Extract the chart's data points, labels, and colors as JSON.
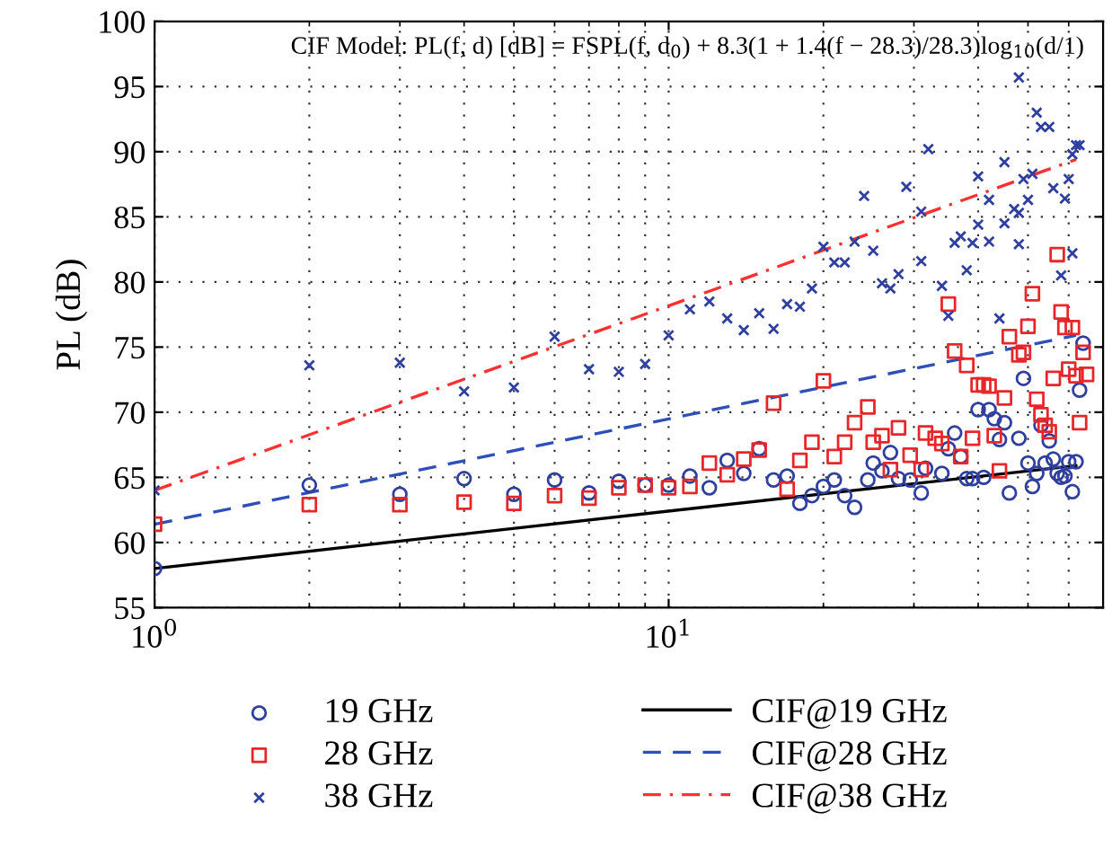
{
  "chart_data": {
    "type": "scatter",
    "ylabel": "PL (dB)",
    "log": "x",
    "xlim": [
      1,
      70
    ],
    "xticks": [
      {
        "value": 1,
        "label": "10$^{0}$"
      },
      {
        "value": 10,
        "label": "10$^{1}$"
      }
    ],
    "ylim": [
      55,
      100
    ],
    "yticks": [
      55,
      60,
      65,
      70,
      75,
      80,
      85,
      90,
      95,
      100
    ],
    "grid": true,
    "legend": "bottom",
    "annotations": [
      "CIF Model: PL(f, d) [dB] = FSPL(f, d$_{0}$) + 8.3(1 + 1.4(f − 28.3)/28.3)log$_{10}$(d/1)"
    ],
    "series": [
      {
        "name": "19 GHz",
        "marker": "circle",
        "color": "#2e3fa0",
        "x": [
          1,
          2,
          3,
          4,
          5,
          6,
          7,
          8,
          9,
          10,
          11,
          12,
          13,
          14,
          15,
          16,
          17,
          18,
          19,
          20,
          21,
          22,
          23,
          24.4,
          25,
          26,
          27,
          28,
          29.5,
          31,
          31.6,
          34,
          35,
          36,
          37,
          38,
          39,
          40,
          41,
          42,
          43,
          44,
          45,
          46,
          48,
          49,
          50,
          51,
          52,
          53,
          54,
          55,
          56,
          57,
          58,
          59,
          60,
          61,
          62,
          63,
          64
        ],
        "values": [
          58,
          64.4,
          63.7,
          64.9,
          63.7,
          64.8,
          63.8,
          64.7,
          64.4,
          64.4,
          65.1,
          64.2,
          66.3,
          65.3,
          67.2,
          64.8,
          65.1,
          63.0,
          63.6,
          64.3,
          64.8,
          63.6,
          62.7,
          64.8,
          66.1,
          65.5,
          66.9,
          64.9,
          64.8,
          63.8,
          65.7,
          65.3,
          67.2,
          68.4,
          66.6,
          64.9,
          64.9,
          70.2,
          65.0,
          70.2,
          69.5,
          67.9,
          69.2,
          63.8,
          68.0,
          72.6,
          66.1,
          64.3,
          65.3,
          69.0,
          66.1,
          67.8,
          66.4,
          65.3,
          65.0,
          65.1,
          66.2,
          63.9,
          66.2,
          71.7,
          75.3
        ]
      },
      {
        "name": "28 GHz",
        "marker": "square",
        "color": "#e8262a",
        "x": [
          1,
          2,
          3,
          4,
          5,
          6,
          7,
          8,
          9,
          10,
          11,
          12,
          13,
          14,
          15,
          16,
          17,
          18,
          19,
          20,
          21,
          22,
          23,
          24.4,
          25,
          26,
          27,
          28,
          29.5,
          31,
          31.6,
          33,
          34,
          35,
          36,
          37,
          38,
          39,
          40,
          41,
          42,
          43,
          44,
          45,
          46,
          48,
          49,
          50,
          51,
          52,
          53,
          54,
          55,
          56,
          57,
          58,
          59,
          60,
          61,
          62,
          63,
          64,
          65
        ],
        "values": [
          61.4,
          62.9,
          62.9,
          63.1,
          63.0,
          63.6,
          63.4,
          64.2,
          64.4,
          64.2,
          64.3,
          66.1,
          65.2,
          66.4,
          67.1,
          70.7,
          64.1,
          66.3,
          67.7,
          72.4,
          66.6,
          67.7,
          69.2,
          70.4,
          67.7,
          68.2,
          65.6,
          68.8,
          66.7,
          65.6,
          68.4,
          68.0,
          67.6,
          78.3,
          74.7,
          66.6,
          73.6,
          68.0,
          72.1,
          72.1,
          72.0,
          68.2,
          65.5,
          71.1,
          75.8,
          74.4,
          74.6,
          76.6,
          79.1,
          71.0,
          69.8,
          69.0,
          68.5,
          72.6,
          82.1,
          77.7,
          76.5,
          73.3,
          76.5,
          72.8,
          69.2,
          74.6,
          72.9
        ]
      },
      {
        "name": "38 GHz",
        "marker": "cross",
        "color": "#2e3fa0",
        "x": [
          1,
          2,
          3,
          4,
          5,
          6,
          7,
          8,
          9,
          10,
          11,
          12,
          13,
          14,
          15,
          16,
          17,
          18,
          19,
          20,
          21,
          22,
          23,
          24,
          25,
          26,
          27,
          28,
          29,
          31,
          31,
          32,
          34,
          35,
          36,
          37,
          38,
          39,
          40,
          40,
          42,
          42,
          44,
          45,
          45,
          47,
          48,
          48,
          48,
          49,
          50,
          51,
          52,
          53,
          55,
          56,
          58,
          59,
          60,
          61,
          61,
          62,
          63
        ],
        "values": [
          64,
          73.6,
          73.8,
          71.6,
          71.9,
          75.8,
          73.3,
          73.1,
          73.7,
          75.9,
          77.9,
          78.5,
          77.2,
          76.3,
          77.6,
          76.4,
          78.3,
          78.1,
          79.5,
          82.7,
          81.5,
          81.5,
          83.1,
          86.6,
          82.4,
          79.9,
          79.5,
          80.6,
          87.3,
          81.6,
          85.4,
          90.2,
          79.7,
          77.4,
          83.0,
          83.5,
          80.9,
          83.0,
          84.4,
          88.1,
          83.1,
          86.3,
          77.2,
          84.5,
          89.2,
          85.6,
          82.9,
          95.7,
          85.3,
          87.9,
          86.3,
          88.3,
          93.0,
          91.9,
          91.9,
          87.2,
          80.5,
          86.4,
          87.9,
          82.2,
          89.8,
          90.5,
          90.5
        ]
      },
      {
        "name": "CIF@19 GHz",
        "type": "line",
        "marker": "none",
        "line_style": "solid",
        "color": "#000000",
        "x": [
          1,
          62
        ],
        "values": [
          58,
          65.9
        ]
      },
      {
        "name": "CIF@28 GHz",
        "type": "line",
        "marker": "none",
        "line_style": "dashed",
        "color": "#2e4fb8",
        "x": [
          1,
          62
        ],
        "values": [
          61.4,
          75.9
        ]
      },
      {
        "name": "CIF@38 GHz",
        "type": "line",
        "marker": "none",
        "line_style": "dashdot",
        "color": "#ff3030",
        "x": [
          1,
          62
        ],
        "values": [
          64,
          89.4
        ]
      }
    ]
  }
}
